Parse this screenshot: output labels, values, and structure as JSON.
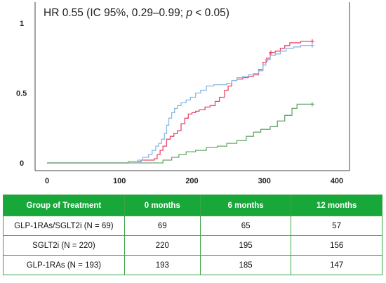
{
  "chart_data": {
    "type": "line",
    "title": "HR 0.55 (IC 95%, 0.29–0.99; p < 0.05)",
    "title_parts": [
      "HR 0.55 (IC 95%, 0.29–0.99; ",
      "p",
      " < 0.05)"
    ],
    "xlabel": "",
    "ylabel": "",
    "xlim": [
      0,
      400
    ],
    "ylim": [
      0,
      1
    ],
    "x_ticks": [
      "0",
      "100",
      "200",
      "300",
      "400"
    ],
    "y_ticks": [
      "0",
      "0.5",
      "1"
    ],
    "grid": false,
    "series": [
      {
        "color": "#e8496a",
        "values": [
          [
            0,
            0
          ],
          [
            100,
            0
          ],
          [
            112,
            0.01
          ],
          [
            130,
            0.02
          ],
          [
            148,
            0.03
          ],
          [
            152,
            0.06
          ],
          [
            156,
            0.09
          ],
          [
            160,
            0.12
          ],
          [
            165,
            0.17
          ],
          [
            170,
            0.19
          ],
          [
            175,
            0.21
          ],
          [
            180,
            0.23
          ],
          [
            185,
            0.28
          ],
          [
            190,
            0.32
          ],
          [
            195,
            0.35
          ],
          [
            200,
            0.36
          ],
          [
            205,
            0.37
          ],
          [
            210,
            0.38
          ],
          [
            218,
            0.4
          ],
          [
            225,
            0.41
          ],
          [
            232,
            0.44
          ],
          [
            238,
            0.47
          ],
          [
            245,
            0.52
          ],
          [
            250,
            0.55
          ],
          [
            255,
            0.59
          ],
          [
            262,
            0.6
          ],
          [
            270,
            0.61
          ],
          [
            278,
            0.62
          ],
          [
            285,
            0.63
          ],
          [
            292,
            0.67
          ],
          [
            298,
            0.72
          ],
          [
            303,
            0.75
          ],
          [
            308,
            0.79
          ],
          [
            315,
            0.8
          ],
          [
            322,
            0.82
          ],
          [
            328,
            0.84
          ],
          [
            335,
            0.86
          ],
          [
            342,
            0.86
          ],
          [
            350,
            0.87
          ],
          [
            357,
            0.87
          ],
          [
            366,
            0.87
          ]
        ],
        "censor": [
          [
            366,
            0.87
          ],
          [
            309,
            0.79
          ]
        ]
      },
      {
        "color": "#8bb8e3",
        "values": [
          [
            0,
            0
          ],
          [
            100,
            0
          ],
          [
            112,
            0.01
          ],
          [
            125,
            0.02
          ],
          [
            132,
            0.04
          ],
          [
            140,
            0.06
          ],
          [
            145,
            0.09
          ],
          [
            150,
            0.12
          ],
          [
            154,
            0.14
          ],
          [
            158,
            0.17
          ],
          [
            162,
            0.21
          ],
          [
            165,
            0.27
          ],
          [
            168,
            0.32
          ],
          [
            172,
            0.36
          ],
          [
            176,
            0.39
          ],
          [
            180,
            0.41
          ],
          [
            185,
            0.43
          ],
          [
            192,
            0.45
          ],
          [
            198,
            0.47
          ],
          [
            205,
            0.5
          ],
          [
            212,
            0.52
          ],
          [
            220,
            0.55
          ],
          [
            230,
            0.56
          ],
          [
            240,
            0.56
          ],
          [
            248,
            0.57
          ],
          [
            255,
            0.59
          ],
          [
            262,
            0.61
          ],
          [
            270,
            0.62
          ],
          [
            278,
            0.63
          ],
          [
            285,
            0.64
          ],
          [
            292,
            0.66
          ],
          [
            298,
            0.7
          ],
          [
            302,
            0.74
          ],
          [
            308,
            0.77
          ],
          [
            315,
            0.78
          ],
          [
            322,
            0.8
          ],
          [
            330,
            0.82
          ],
          [
            340,
            0.83
          ],
          [
            350,
            0.84
          ],
          [
            366,
            0.84
          ]
        ],
        "censor": [
          [
            366,
            0.84
          ],
          [
            304,
            0.74
          ]
        ]
      },
      {
        "color": "#6aa86c",
        "values": [
          [
            0,
            0
          ],
          [
            150,
            0
          ],
          [
            160,
            0.02
          ],
          [
            172,
            0.04
          ],
          [
            182,
            0.06
          ],
          [
            192,
            0.08
          ],
          [
            205,
            0.09
          ],
          [
            220,
            0.11
          ],
          [
            235,
            0.12
          ],
          [
            248,
            0.14
          ],
          [
            262,
            0.16
          ],
          [
            275,
            0.19
          ],
          [
            285,
            0.22
          ],
          [
            295,
            0.24
          ],
          [
            308,
            0.26
          ],
          [
            318,
            0.3
          ],
          [
            328,
            0.34
          ],
          [
            338,
            0.39
          ],
          [
            345,
            0.42
          ],
          [
            355,
            0.42
          ],
          [
            366,
            0.42
          ]
        ],
        "censor": [
          [
            366,
            0.42
          ]
        ]
      }
    ]
  },
  "table": {
    "headers": [
      "Group of Treatment",
      "0 months",
      "6 months",
      "12 months"
    ],
    "rows": [
      [
        "GLP-1RAs/SGLT2i (N = 69)",
        "69",
        "65",
        "57"
      ],
      [
        "SGLT2i (N = 220)",
        "220",
        "195",
        "156"
      ],
      [
        "GLP-1RAs (N = 193)",
        "193",
        "185",
        "147"
      ]
    ],
    "header_color": "#18a83a"
  }
}
